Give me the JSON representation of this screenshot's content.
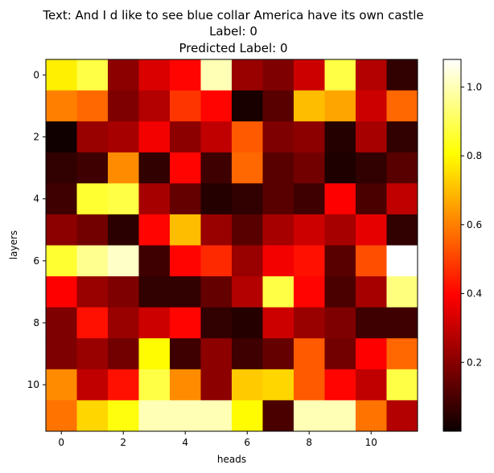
{
  "chart_data": {
    "type": "heatmap",
    "title_lines": [
      "Text: And I d like to see blue collar America have its own castle",
      "Label: 0",
      "Predicted Label: 0"
    ],
    "xlabel": "heads",
    "ylabel": "layers",
    "rows": 12,
    "cols": 12,
    "x_ticks": [
      0,
      2,
      4,
      6,
      8,
      10
    ],
    "y_ticks": [
      0,
      2,
      4,
      6,
      8,
      10
    ],
    "x_tick_labels": [
      "0",
      "2",
      "4",
      "6",
      "8",
      "10"
    ],
    "y_tick_labels": [
      "0",
      "2",
      "4",
      "6",
      "8",
      "10"
    ],
    "colormap": "hot",
    "colorbar": {
      "vmin": 0.0,
      "vmax": 1.08,
      "ticks": [
        0.2,
        0.4,
        0.6,
        0.8,
        1.0
      ],
      "tick_labels": [
        "0.2",
        "0.4",
        "0.6",
        "0.8",
        "1.0"
      ]
    },
    "values": [
      [
        0.78,
        0.88,
        0.2,
        0.32,
        0.4,
        1.0,
        0.22,
        0.18,
        0.3,
        0.88,
        0.26,
        0.06
      ],
      [
        0.6,
        0.56,
        0.18,
        0.26,
        0.48,
        0.4,
        0.02,
        0.12,
        0.7,
        0.66,
        0.3,
        0.56
      ],
      [
        0.01,
        0.22,
        0.24,
        0.36,
        0.2,
        0.28,
        0.54,
        0.18,
        0.2,
        0.04,
        0.24,
        0.06
      ],
      [
        0.06,
        0.08,
        0.62,
        0.06,
        0.4,
        0.08,
        0.56,
        0.12,
        0.16,
        0.03,
        0.06,
        0.12
      ],
      [
        0.08,
        0.86,
        0.88,
        0.24,
        0.14,
        0.04,
        0.06,
        0.12,
        0.08,
        0.38,
        0.1,
        0.28
      ],
      [
        0.2,
        0.16,
        0.05,
        0.4,
        0.7,
        0.22,
        0.12,
        0.24,
        0.3,
        0.24,
        0.34,
        0.06
      ],
      [
        0.86,
        0.96,
        1.02,
        0.08,
        0.4,
        0.46,
        0.22,
        0.36,
        0.42,
        0.12,
        0.52,
        1.08
      ],
      [
        0.38,
        0.22,
        0.18,
        0.06,
        0.06,
        0.14,
        0.26,
        0.88,
        0.4,
        0.1,
        0.24,
        0.94
      ],
      [
        0.18,
        0.42,
        0.22,
        0.3,
        0.4,
        0.06,
        0.04,
        0.3,
        0.22,
        0.18,
        0.08,
        0.08
      ],
      [
        0.18,
        0.22,
        0.16,
        0.8,
        0.08,
        0.2,
        0.08,
        0.14,
        0.54,
        0.16,
        0.38,
        0.56
      ],
      [
        0.62,
        0.28,
        0.42,
        0.88,
        0.62,
        0.2,
        0.72,
        0.74,
        0.54,
        0.4,
        0.28,
        0.88
      ],
      [
        0.58,
        0.74,
        0.82,
        1.0,
        1.0,
        1.0,
        0.8,
        0.1,
        1.0,
        1.0,
        0.58,
        0.26
      ]
    ]
  }
}
